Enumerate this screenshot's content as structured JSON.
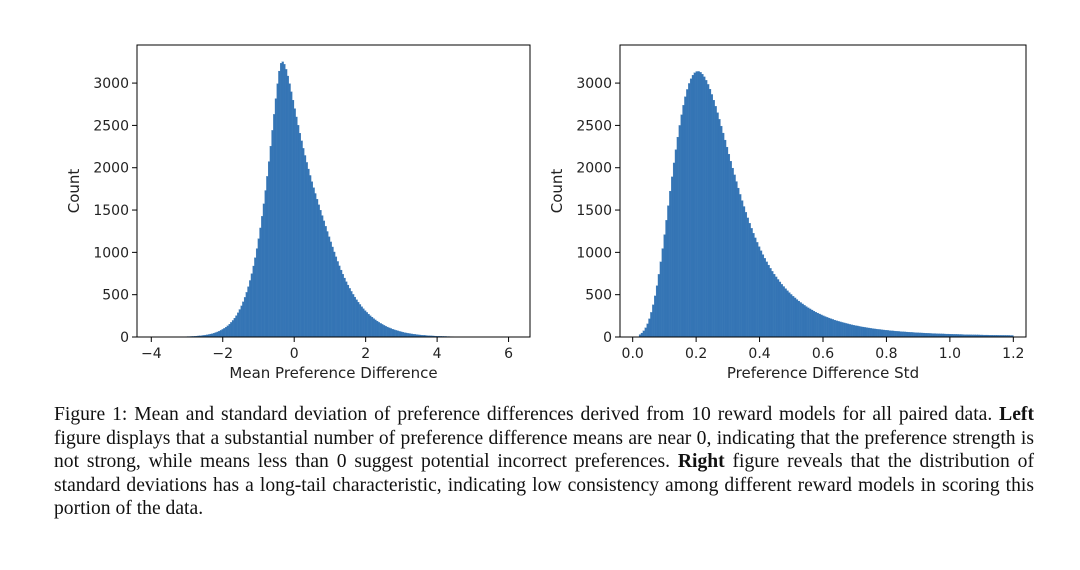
{
  "chart_data": [
    {
      "type": "bar",
      "subtype": "histogram",
      "xlabel": "Mean Preference Difference",
      "ylabel": "Count",
      "xlim": [
        -4.4,
        6.6
      ],
      "ylim": [
        0,
        3450
      ],
      "xticks": [
        -4,
        -2,
        0,
        2,
        4,
        6
      ],
      "xtick_labels": [
        "−4",
        "−2",
        "0",
        "2",
        "4",
        "6"
      ],
      "yticks": [
        0,
        500,
        1000,
        1500,
        2000,
        2500,
        3000
      ],
      "ytick_labels": [
        "0",
        "500",
        "1000",
        "1500",
        "2000",
        "2500",
        "3000"
      ],
      "bin_range": [
        -4.0,
        6.0
      ],
      "bins": 200,
      "values": [
        1,
        1,
        1,
        1,
        1,
        1,
        1,
        1,
        1,
        1,
        1,
        2,
        2,
        2,
        2,
        2,
        3,
        3,
        4,
        4,
        5,
        6,
        6,
        7,
        8,
        10,
        11,
        13,
        15,
        17,
        20,
        23,
        26,
        30,
        35,
        40,
        46,
        53,
        60,
        69,
        79,
        90,
        103,
        117,
        133,
        152,
        173,
        196,
        223,
        253,
        287,
        325,
        368,
        416,
        469,
        528,
        595,
        668,
        749,
        839,
        937,
        1045,
        1162,
        1289,
        1427,
        1574,
        1731,
        1898,
        2073,
        2255,
        2442,
        2631,
        2817,
        2993,
        3142,
        3235,
        3252,
        3223,
        3163,
        3084,
        2994,
        2898,
        2799,
        2699,
        2600,
        2503,
        2409,
        2318,
        2230,
        2145,
        2063,
        1985,
        1909,
        1836,
        1765,
        1696,
        1629,
        1563,
        1499,
        1435,
        1372,
        1309,
        1247,
        1185,
        1124,
        1064,
        1005,
        948,
        893,
        841,
        791,
        743,
        697,
        654,
        614,
        575,
        539,
        504,
        472,
        441,
        412,
        385,
        359,
        335,
        312,
        291,
        271,
        252,
        235,
        218,
        202,
        188,
        174,
        161,
        150,
        138,
        128,
        118,
        109,
        101,
        93,
        86,
        79,
        73,
        67,
        62,
        57,
        52,
        48,
        44,
        41,
        37,
        34,
        32,
        29,
        27,
        24,
        22,
        21,
        19,
        17,
        16,
        15,
        13,
        12,
        11,
        10,
        10,
        9,
        8,
        7,
        7,
        6,
        6,
        5,
        5,
        4,
        4,
        4,
        3,
        3,
        3,
        3,
        2,
        2,
        2,
        2,
        2,
        1,
        1,
        1,
        1,
        1,
        1,
        1,
        1,
        1,
        1,
        1,
        1,
        1,
        1,
        1,
        1,
        1,
        1,
        1,
        1
      ],
      "color": "#3575b5"
    },
    {
      "type": "bar",
      "subtype": "histogram",
      "xlabel": "Preference Difference Std",
      "ylabel": "Count",
      "xlim": [
        -0.04,
        1.24
      ],
      "ylim": [
        0,
        3450
      ],
      "xticks": [
        0.0,
        0.2,
        0.4,
        0.6,
        0.8,
        1.0,
        1.2
      ],
      "xtick_labels": [
        "0.0",
        "0.2",
        "0.4",
        "0.6",
        "0.8",
        "1.0",
        "1.2"
      ],
      "yticks": [
        0,
        500,
        1000,
        1500,
        2000,
        2500,
        3000
      ],
      "ytick_labels": [
        "0",
        "500",
        "1000",
        "1500",
        "2000",
        "2500",
        "3000"
      ],
      "bin_range": [
        0.02,
        1.2
      ],
      "bins": 200,
      "values": [
        29,
        47,
        73,
        109,
        156,
        216,
        291,
        381,
        486,
        607,
        741,
        888,
        1045,
        1210,
        1380,
        1552,
        1724,
        1893,
        2057,
        2214,
        2362,
        2500,
        2626,
        2739,
        2839,
        2925,
        2996,
        3052,
        3094,
        3122,
        3137,
        3138,
        3128,
        3106,
        3075,
        3034,
        2985,
        2929,
        2866,
        2799,
        2727,
        2651,
        2573,
        2492,
        2410,
        2327,
        2244,
        2161,
        2078,
        1996,
        1916,
        1837,
        1760,
        1685,
        1612,
        1542,
        1474,
        1408,
        1345,
        1285,
        1227,
        1172,
        1119,
        1068,
        1020,
        974,
        931,
        889,
        850,
        812,
        777,
        743,
        711,
        680,
        651,
        623,
        597,
        572,
        548,
        525,
        503,
        482,
        462,
        443,
        425,
        408,
        391,
        375,
        360,
        346,
        332,
        319,
        306,
        294,
        283,
        272,
        261,
        251,
        242,
        233,
        224,
        216,
        208,
        200,
        193,
        186,
        179,
        173,
        167,
        161,
        155,
        150,
        145,
        140,
        135,
        131,
        126,
        122,
        118,
        114,
        111,
        107,
        104,
        100,
        97,
        94,
        91,
        89,
        86,
        83,
        81,
        79,
        76,
        74,
        72,
        70,
        68,
        66,
        64,
        63,
        61,
        59,
        58,
        56,
        55,
        53,
        52,
        51,
        49,
        48,
        47,
        46,
        45,
        44,
        42,
        41,
        41,
        40,
        39,
        38,
        37,
        36,
        35,
        35,
        34,
        33,
        32,
        32,
        31,
        30,
        30,
        29,
        28,
        28,
        27,
        27,
        26,
        26,
        25,
        25,
        24,
        24,
        23,
        23,
        23,
        22,
        22,
        21,
        21,
        21,
        20,
        20,
        19,
        19,
        19,
        19,
        18,
        18
      ],
      "color": "#3575b5"
    }
  ],
  "caption": {
    "prefix": "Figure 1: Mean and standard deviation of preference differences derived from 10 reward models for all paired data. ",
    "left_bold": "Left",
    "middle": " figure displays that a substantial number of preference difference means are near 0, indicating that the preference strength is not strong, while means less than 0 suggest potential incorrect preferences. ",
    "right_bold": "Right",
    "suffix": " figure reveals that the distribution of standard deviations has a long-tail characteristic, indicating low consistency among different reward models in scoring this portion of the data."
  }
}
